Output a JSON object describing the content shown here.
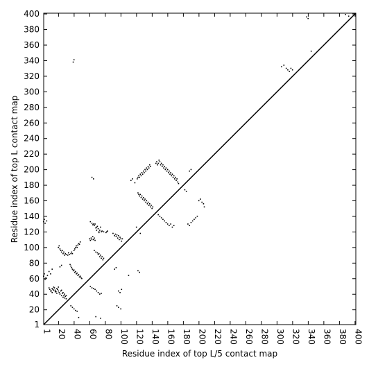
{
  "chart_data": {
    "type": "scatter",
    "title": "",
    "xlabel": "Residue index of top L/5 contact map",
    "ylabel": "Residue index of top L contact map",
    "xlim": [
      1,
      401
    ],
    "ylim": [
      1,
      401
    ],
    "x_ticks": [
      1,
      20,
      40,
      60,
      80,
      100,
      120,
      140,
      160,
      180,
      200,
      220,
      240,
      260,
      280,
      300,
      320,
      340,
      360,
      380,
      400
    ],
    "y_ticks": [
      1,
      20,
      40,
      60,
      80,
      100,
      120,
      140,
      160,
      180,
      200,
      220,
      240,
      260,
      280,
      300,
      320,
      340,
      360,
      380,
      400
    ],
    "grid": false,
    "legend": "none",
    "diagonal": {
      "from": [
        1,
        1
      ],
      "to": [
        401,
        401
      ]
    },
    "marker_color": "#000000",
    "series": [
      {
        "points": [
          [
            1,
            133
          ],
          [
            2,
            136
          ],
          [
            3,
            131
          ],
          [
            5,
            134
          ],
          [
            1,
            63
          ],
          [
            2,
            66
          ],
          [
            4,
            61
          ],
          [
            3,
            59
          ],
          [
            6,
            64
          ],
          [
            8,
            69
          ],
          [
            10,
            66
          ],
          [
            12,
            72
          ],
          [
            8,
            48
          ],
          [
            9,
            46
          ],
          [
            10,
            44
          ],
          [
            12,
            42
          ],
          [
            14,
            45
          ],
          [
            16,
            43
          ],
          [
            18,
            41
          ],
          [
            20,
            44
          ],
          [
            22,
            40
          ],
          [
            24,
            38
          ],
          [
            26,
            36
          ],
          [
            28,
            35
          ],
          [
            11,
            44
          ],
          [
            13,
            46
          ],
          [
            15,
            48
          ],
          [
            17,
            43
          ],
          [
            19,
            46
          ],
          [
            21,
            42
          ],
          [
            23,
            44
          ],
          [
            25,
            41
          ],
          [
            27,
            38
          ],
          [
            29,
            37
          ],
          [
            30,
            34
          ],
          [
            12,
            47
          ],
          [
            14,
            49
          ],
          [
            16,
            45
          ],
          [
            18,
            47
          ],
          [
            20,
            49
          ],
          [
            24,
            45
          ],
          [
            26,
            42
          ],
          [
            28,
            40
          ],
          [
            30,
            38
          ],
          [
            20,
            100
          ],
          [
            21,
            102
          ],
          [
            22,
            98
          ],
          [
            23,
            96
          ],
          [
            24,
            94
          ],
          [
            25,
            96
          ],
          [
            26,
            92
          ],
          [
            27,
            94
          ],
          [
            28,
            90
          ],
          [
            29,
            92
          ],
          [
            30,
            91
          ],
          [
            32,
            90
          ],
          [
            33,
            93
          ],
          [
            34,
            91
          ],
          [
            36,
            92
          ],
          [
            37,
            94
          ],
          [
            38,
            92
          ],
          [
            40,
            96
          ],
          [
            41,
            98
          ],
          [
            42,
            100
          ],
          [
            43,
            102
          ],
          [
            44,
            100
          ],
          [
            45,
            103
          ],
          [
            46,
            105
          ],
          [
            47,
            104
          ],
          [
            48,
            107
          ],
          [
            22,
            75
          ],
          [
            24,
            77
          ],
          [
            35,
            78
          ],
          [
            36,
            76
          ],
          [
            37,
            74
          ],
          [
            38,
            72
          ],
          [
            39,
            70
          ],
          [
            40,
            71
          ],
          [
            41,
            68
          ],
          [
            42,
            69
          ],
          [
            43,
            66
          ],
          [
            44,
            67
          ],
          [
            45,
            64
          ],
          [
            46,
            65
          ],
          [
            47,
            62
          ],
          [
            48,
            63
          ],
          [
            49,
            61
          ],
          [
            50,
            60
          ],
          [
            36,
            25
          ],
          [
            38,
            23
          ],
          [
            40,
            21
          ],
          [
            42,
            19
          ],
          [
            44,
            18
          ],
          [
            46,
            10
          ],
          [
            39,
            338
          ],
          [
            40,
            341
          ],
          [
            60,
            111
          ],
          [
            61,
            109
          ],
          [
            62,
            112
          ],
          [
            63,
            110
          ],
          [
            64,
            114
          ],
          [
            65,
            110
          ],
          [
            66,
            112
          ],
          [
            67,
            109
          ],
          [
            68,
            125
          ],
          [
            69,
            122
          ],
          [
            70,
            127
          ],
          [
            71,
            124
          ],
          [
            72,
            120
          ],
          [
            73,
            122
          ],
          [
            74,
            126
          ],
          [
            75,
            120
          ],
          [
            61,
            133
          ],
          [
            63,
            131
          ],
          [
            64,
            129
          ],
          [
            65,
            130
          ],
          [
            66,
            128
          ],
          [
            67,
            130
          ],
          [
            69,
            126
          ],
          [
            72,
            119
          ],
          [
            76,
            121
          ],
          [
            78,
            120
          ],
          [
            81,
            119
          ],
          [
            82,
            120
          ],
          [
            83,
            121
          ],
          [
            66,
            96
          ],
          [
            68,
            94
          ],
          [
            70,
            93
          ],
          [
            71,
            91
          ],
          [
            72,
            92
          ],
          [
            73,
            88
          ],
          [
            74,
            90
          ],
          [
            75,
            86
          ],
          [
            76,
            88
          ],
          [
            77,
            84
          ],
          [
            78,
            86
          ],
          [
            61,
            50
          ],
          [
            63,
            48
          ],
          [
            65,
            47
          ],
          [
            67,
            46
          ],
          [
            69,
            44
          ],
          [
            71,
            42
          ],
          [
            73,
            40
          ],
          [
            75,
            41
          ],
          [
            63,
            190
          ],
          [
            65,
            188
          ],
          [
            68,
            11
          ],
          [
            74,
            9
          ],
          [
            90,
            118
          ],
          [
            92,
            115
          ],
          [
            93,
            117
          ],
          [
            94,
            114
          ],
          [
            95,
            116
          ],
          [
            96,
            112
          ],
          [
            97,
            115
          ],
          [
            98,
            110
          ],
          [
            99,
            113
          ],
          [
            100,
            111
          ],
          [
            101,
            108
          ],
          [
            102,
            111
          ],
          [
            92,
            72
          ],
          [
            94,
            74
          ],
          [
            97,
            44
          ],
          [
            99,
            42
          ],
          [
            101,
            46
          ],
          [
            95,
            25
          ],
          [
            97,
            23
          ],
          [
            100,
            21
          ],
          [
            110,
            64
          ],
          [
            113,
            186
          ],
          [
            115,
            188
          ],
          [
            118,
            183
          ],
          [
            120,
            126
          ],
          [
            121,
            188
          ],
          [
            122,
            190
          ],
          [
            123,
            192
          ],
          [
            124,
            190
          ],
          [
            125,
            194
          ],
          [
            126,
            192
          ],
          [
            127,
            196
          ],
          [
            128,
            194
          ],
          [
            129,
            198
          ],
          [
            130,
            196
          ],
          [
            131,
            200
          ],
          [
            132,
            198
          ],
          [
            133,
            202
          ],
          [
            134,
            200
          ],
          [
            135,
            204
          ],
          [
            136,
            202
          ],
          [
            137,
            206
          ],
          [
            138,
            204
          ],
          [
            122,
            170
          ],
          [
            123,
            168
          ],
          [
            124,
            166
          ],
          [
            125,
            168
          ],
          [
            126,
            164
          ],
          [
            127,
            166
          ],
          [
            128,
            162
          ],
          [
            129,
            164
          ],
          [
            130,
            160
          ],
          [
            131,
            162
          ],
          [
            132,
            158
          ],
          [
            133,
            160
          ],
          [
            134,
            156
          ],
          [
            135,
            158
          ],
          [
            136,
            154
          ],
          [
            137,
            156
          ],
          [
            138,
            152
          ],
          [
            139,
            154
          ],
          [
            140,
            150
          ],
          [
            141,
            152
          ],
          [
            122,
            70
          ],
          [
            124,
            68
          ],
          [
            125,
            118
          ],
          [
            145,
            208
          ],
          [
            146,
            210
          ],
          [
            147,
            206
          ],
          [
            148,
            208
          ],
          [
            149,
            212
          ],
          [
            150,
            210
          ],
          [
            151,
            206
          ],
          [
            152,
            208
          ],
          [
            153,
            204
          ],
          [
            154,
            206
          ],
          [
            155,
            202
          ],
          [
            156,
            204
          ],
          [
            157,
            200
          ],
          [
            158,
            202
          ],
          [
            159,
            198
          ],
          [
            160,
            200
          ],
          [
            161,
            196
          ],
          [
            162,
            198
          ],
          [
            163,
            194
          ],
          [
            164,
            196
          ],
          [
            165,
            192
          ],
          [
            166,
            194
          ],
          [
            167,
            190
          ],
          [
            168,
            192
          ],
          [
            169,
            188
          ],
          [
            170,
            190
          ],
          [
            171,
            186
          ],
          [
            172,
            188
          ],
          [
            173,
            184
          ],
          [
            174,
            182
          ],
          [
            148,
            142
          ],
          [
            150,
            140
          ],
          [
            152,
            138
          ],
          [
            154,
            136
          ],
          [
            156,
            134
          ],
          [
            158,
            132
          ],
          [
            160,
            130
          ],
          [
            162,
            128
          ],
          [
            164,
            130
          ],
          [
            166,
            126
          ],
          [
            168,
            128
          ],
          [
            182,
            174
          ],
          [
            184,
            172
          ],
          [
            188,
            198
          ],
          [
            190,
            200
          ],
          [
            186,
            130
          ],
          [
            188,
            128
          ],
          [
            190,
            132
          ],
          [
            192,
            134
          ],
          [
            194,
            136
          ],
          [
            196,
            138
          ],
          [
            198,
            140
          ],
          [
            200,
            160
          ],
          [
            202,
            162
          ],
          [
            204,
            158
          ],
          [
            206,
            156
          ],
          [
            207,
            152
          ],
          [
            306,
            332
          ],
          [
            309,
            334
          ],
          [
            312,
            330
          ],
          [
            314,
            328
          ],
          [
            316,
            326
          ],
          [
            318,
            330
          ],
          [
            320,
            328
          ],
          [
            338,
            396
          ],
          [
            340,
            394
          ],
          [
            344,
            352
          ],
          [
            388,
            399
          ],
          [
            392,
            397
          ]
        ]
      }
    ]
  }
}
